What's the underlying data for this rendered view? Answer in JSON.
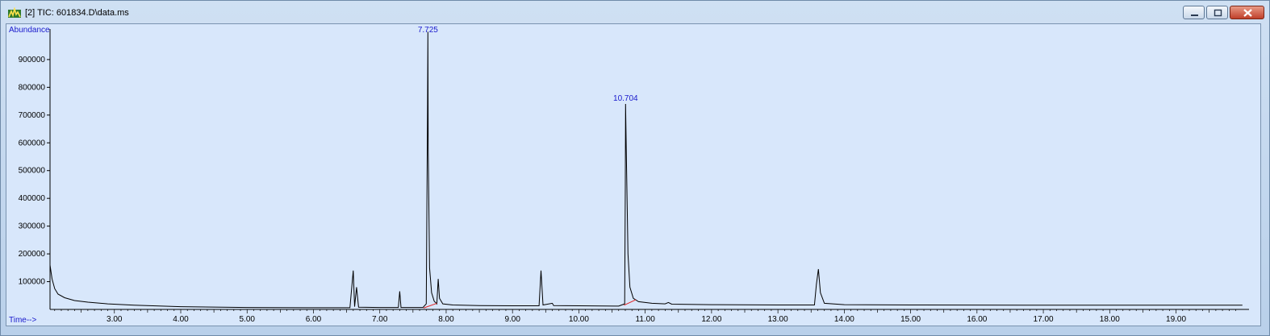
{
  "window": {
    "title": "[2] TIC: 601834.D\\data.ms"
  },
  "controls": {
    "minimize": "minimize-icon",
    "maximize": "maximize-icon",
    "close": "close-icon"
  },
  "colors": {
    "plot_bg": "#d8e7fb",
    "trace": "#000000",
    "label_blue": "#1a1acc",
    "baseline_red": "#e02020"
  },
  "chart_data": {
    "type": "line",
    "ylabel": "Abundance",
    "xlabel": "Time-->",
    "xlim": [
      2.03,
      20.1
    ],
    "ylim": [
      0,
      1010000
    ],
    "x_ticks": [
      "3.00",
      "4.00",
      "5.00",
      "6.00",
      "7.00",
      "8.00",
      "9.00",
      "10.00",
      "11.00",
      "12.00",
      "13.00",
      "14.00",
      "15.00",
      "16.00",
      "17.00",
      "18.00",
      "19.00"
    ],
    "y_ticks": [
      "100000",
      "200000",
      "300000",
      "400000",
      "500000",
      "600000",
      "700000",
      "800000",
      "900000"
    ],
    "peak_labels": [
      {
        "x": 7.725,
        "text": "7.725"
      },
      {
        "x": 10.704,
        "text": "10.704"
      }
    ],
    "series": [
      {
        "values": [
          [
            2.03,
            160000
          ],
          [
            2.06,
            110000
          ],
          [
            2.1,
            75000
          ],
          [
            2.15,
            55000
          ],
          [
            2.25,
            42000
          ],
          [
            2.4,
            32000
          ],
          [
            2.6,
            26000
          ],
          [
            2.9,
            20000
          ],
          [
            3.3,
            15000
          ],
          [
            4.0,
            10000
          ],
          [
            5.0,
            7000
          ],
          [
            6.0,
            6000
          ],
          [
            6.55,
            6000
          ],
          [
            6.6,
            140000
          ],
          [
            6.62,
            10000
          ],
          [
            6.65,
            80000
          ],
          [
            6.68,
            8000
          ],
          [
            7.0,
            7000
          ],
          [
            7.28,
            7000
          ],
          [
            7.3,
            65000
          ],
          [
            7.32,
            7000
          ],
          [
            7.65,
            7000
          ],
          [
            7.7,
            20000
          ],
          [
            7.72,
            740000
          ],
          [
            7.725,
            1000000
          ],
          [
            7.73,
            580000
          ],
          [
            7.75,
            150000
          ],
          [
            7.78,
            60000
          ],
          [
            7.82,
            30000
          ],
          [
            7.86,
            20000
          ],
          [
            7.88,
            110000
          ],
          [
            7.9,
            40000
          ],
          [
            7.95,
            20000
          ],
          [
            8.1,
            16000
          ],
          [
            8.5,
            14000
          ],
          [
            9.0,
            13000
          ],
          [
            9.4,
            13000
          ],
          [
            9.43,
            140000
          ],
          [
            9.46,
            16000
          ],
          [
            9.6,
            22000
          ],
          [
            9.62,
            14000
          ],
          [
            10.0,
            13000
          ],
          [
            10.6,
            12000
          ],
          [
            10.69,
            20000
          ],
          [
            10.7,
            450000
          ],
          [
            10.704,
            740000
          ],
          [
            10.72,
            500000
          ],
          [
            10.74,
            200000
          ],
          [
            10.77,
            80000
          ],
          [
            10.82,
            40000
          ],
          [
            10.9,
            28000
          ],
          [
            11.1,
            22000
          ],
          [
            11.3,
            20000
          ],
          [
            11.35,
            25000
          ],
          [
            11.4,
            19000
          ],
          [
            12.0,
            17000
          ],
          [
            13.0,
            16000
          ],
          [
            13.55,
            16000
          ],
          [
            13.58,
            90000
          ],
          [
            13.61,
            145000
          ],
          [
            13.64,
            60000
          ],
          [
            13.7,
            22000
          ],
          [
            14.0,
            17000
          ],
          [
            15.0,
            16000
          ],
          [
            17.0,
            15000
          ],
          [
            19.0,
            15000
          ],
          [
            20.0,
            15000
          ]
        ]
      }
    ],
    "baseline_segments": [
      [
        [
          7.66,
          5000
        ],
        [
          7.86,
          22000
        ]
      ],
      [
        [
          10.68,
          15000
        ],
        [
          10.86,
          35000
        ]
      ]
    ]
  }
}
